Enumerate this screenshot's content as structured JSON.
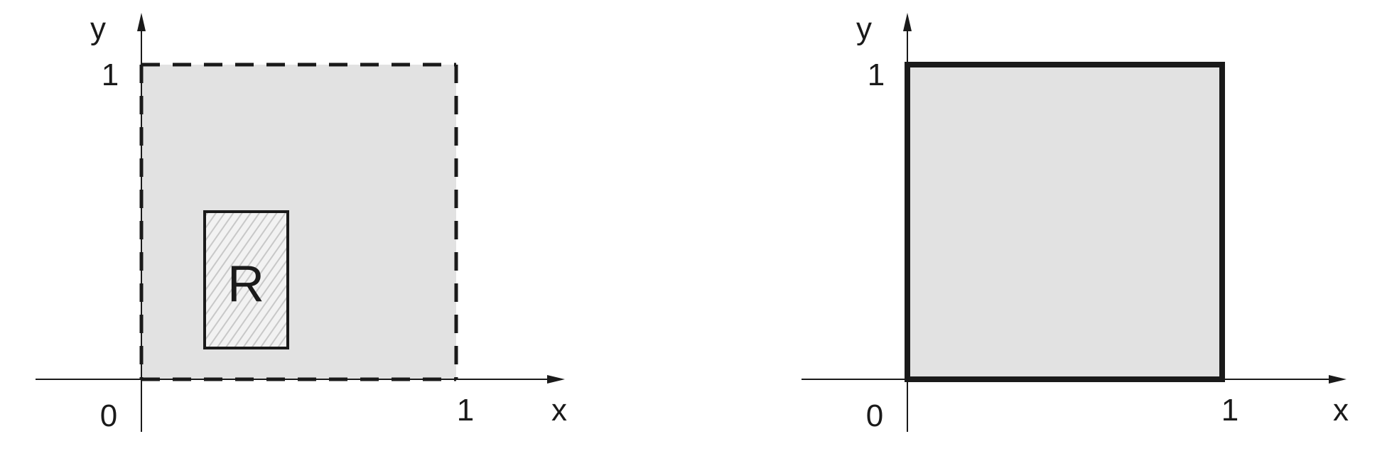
{
  "colors": {
    "ink": "#1a1a1a",
    "region_fill": "#e2e2e2",
    "hatch_fill": "#f2f2f2",
    "hatch_line": "#c8c8c8"
  },
  "left_panel": {
    "x_axis_label": "x",
    "y_axis_label": "y",
    "origin_label": "0",
    "x_tick_label": "1",
    "y_tick_label": "1",
    "region_label": "R",
    "square_boundary": "dashed"
  },
  "right_panel": {
    "x_axis_label": "x",
    "y_axis_label": "y",
    "origin_label": "0",
    "x_tick_label": "1",
    "y_tick_label": "1",
    "square_boundary": "solid"
  }
}
